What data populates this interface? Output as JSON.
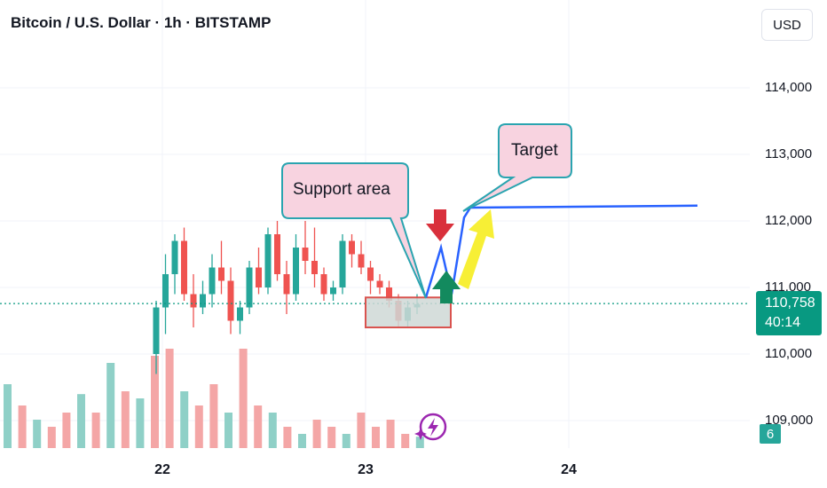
{
  "header": {
    "title": "Bitcoin / U.S. Dollar · 1h · BITSTAMP",
    "currency_button": "USD"
  },
  "badges": {
    "last_price": "110,758",
    "countdown": "40:14",
    "volume_value": "6"
  },
  "annotations": {
    "support_label": "Support area",
    "target_label": "Target"
  },
  "colors": {
    "up": "#26a69a",
    "down": "#ef5350",
    "up_volume": "#8fd0c7",
    "down_volume": "#f4a6a6",
    "projection_line": "#2962ff",
    "callout_fill": "#f8d3e0",
    "callout_border": "#2aa4b0",
    "support_box": "#d9534f",
    "arrow_down": "#d9303c",
    "arrow_up": "#138a5e",
    "arrow_yellow": "#f7ef35"
  },
  "chart_data": {
    "type": "candlestick",
    "title": "Bitcoin / U.S. Dollar · 1h · BITSTAMP",
    "y_ticks": [
      "114,000",
      "113,000",
      "112,000",
      "111,000",
      "110,000",
      "109,000"
    ],
    "y_tick_values": [
      114000,
      113000,
      112000,
      111000,
      110000,
      109000
    ],
    "x_ticks": [
      "22",
      "23",
      "24"
    ],
    "ylim": [
      108600,
      115200
    ],
    "current_price": 110758,
    "candles": [
      {
        "o": 110000,
        "h": 110800,
        "l": 109700,
        "c": 110700
      },
      {
        "o": 110700,
        "h": 111500,
        "l": 110300,
        "c": 111200
      },
      {
        "o": 111200,
        "h": 111800,
        "l": 110900,
        "c": 111700
      },
      {
        "o": 111700,
        "h": 111900,
        "l": 110800,
        "c": 110900
      },
      {
        "o": 110900,
        "h": 111200,
        "l": 110400,
        "c": 110700
      },
      {
        "o": 110700,
        "h": 111100,
        "l": 110600,
        "c": 110900
      },
      {
        "o": 110900,
        "h": 111500,
        "l": 110700,
        "c": 111300
      },
      {
        "o": 111300,
        "h": 111700,
        "l": 110900,
        "c": 111100
      },
      {
        "o": 111100,
        "h": 111300,
        "l": 110300,
        "c": 110500
      },
      {
        "o": 110500,
        "h": 110800,
        "l": 110300,
        "c": 110700
      },
      {
        "o": 110700,
        "h": 111400,
        "l": 110600,
        "c": 111300
      },
      {
        "o": 111300,
        "h": 111600,
        "l": 110900,
        "c": 111000
      },
      {
        "o": 111000,
        "h": 111900,
        "l": 110900,
        "c": 111800
      },
      {
        "o": 111800,
        "h": 112000,
        "l": 111100,
        "c": 111200
      },
      {
        "o": 111200,
        "h": 111400,
        "l": 110600,
        "c": 110900
      },
      {
        "o": 110900,
        "h": 111800,
        "l": 110800,
        "c": 111600
      },
      {
        "o": 111600,
        "h": 112000,
        "l": 111200,
        "c": 111400
      },
      {
        "o": 111400,
        "h": 111900,
        "l": 111000,
        "c": 111200
      },
      {
        "o": 111200,
        "h": 111300,
        "l": 110800,
        "c": 110900
      },
      {
        "o": 110900,
        "h": 111100,
        "l": 110800,
        "c": 111000
      },
      {
        "o": 111000,
        "h": 111800,
        "l": 110900,
        "c": 111700
      },
      {
        "o": 111700,
        "h": 111800,
        "l": 111300,
        "c": 111500
      },
      {
        "o": 111500,
        "h": 111700,
        "l": 111200,
        "c": 111300
      },
      {
        "o": 111300,
        "h": 111400,
        "l": 110900,
        "c": 111100
      },
      {
        "o": 111100,
        "h": 111200,
        "l": 110900,
        "c": 111000
      },
      {
        "o": 111000,
        "h": 111100,
        "l": 110700,
        "c": 110800
      },
      {
        "o": 110800,
        "h": 110900,
        "l": 110400,
        "c": 110500
      },
      {
        "o": 110500,
        "h": 110800,
        "l": 110400,
        "c": 110700
      },
      {
        "o": 110700,
        "h": 110900,
        "l": 110600,
        "c": 110750
      }
    ],
    "volume": [
      {
        "v": 45,
        "up": true
      },
      {
        "v": 30,
        "up": false
      },
      {
        "v": 20,
        "up": true
      },
      {
        "v": 15,
        "up": false
      },
      {
        "v": 25,
        "up": false
      },
      {
        "v": 38,
        "up": true
      },
      {
        "v": 25,
        "up": false
      },
      {
        "v": 60,
        "up": true
      },
      {
        "v": 40,
        "up": false
      },
      {
        "v": 35,
        "up": true
      },
      {
        "v": 65,
        "up": false
      },
      {
        "v": 70,
        "up": false
      },
      {
        "v": 40,
        "up": true
      },
      {
        "v": 30,
        "up": false
      },
      {
        "v": 45,
        "up": false
      },
      {
        "v": 25,
        "up": true
      },
      {
        "v": 70,
        "up": false
      },
      {
        "v": 30,
        "up": false
      },
      {
        "v": 25,
        "up": true
      },
      {
        "v": 15,
        "up": false
      },
      {
        "v": 10,
        "up": true
      },
      {
        "v": 20,
        "up": false
      },
      {
        "v": 15,
        "up": false
      },
      {
        "v": 10,
        "up": true
      },
      {
        "v": 25,
        "up": false
      },
      {
        "v": 15,
        "up": false
      },
      {
        "v": 20,
        "up": false
      },
      {
        "v": 10,
        "up": false
      },
      {
        "v": 8,
        "up": true
      }
    ],
    "support_zone": {
      "low": 110400,
      "high": 110850
    },
    "projection_path": [
      110850,
      111600,
      110900,
      112050,
      112200
    ],
    "target_level": 112200
  }
}
